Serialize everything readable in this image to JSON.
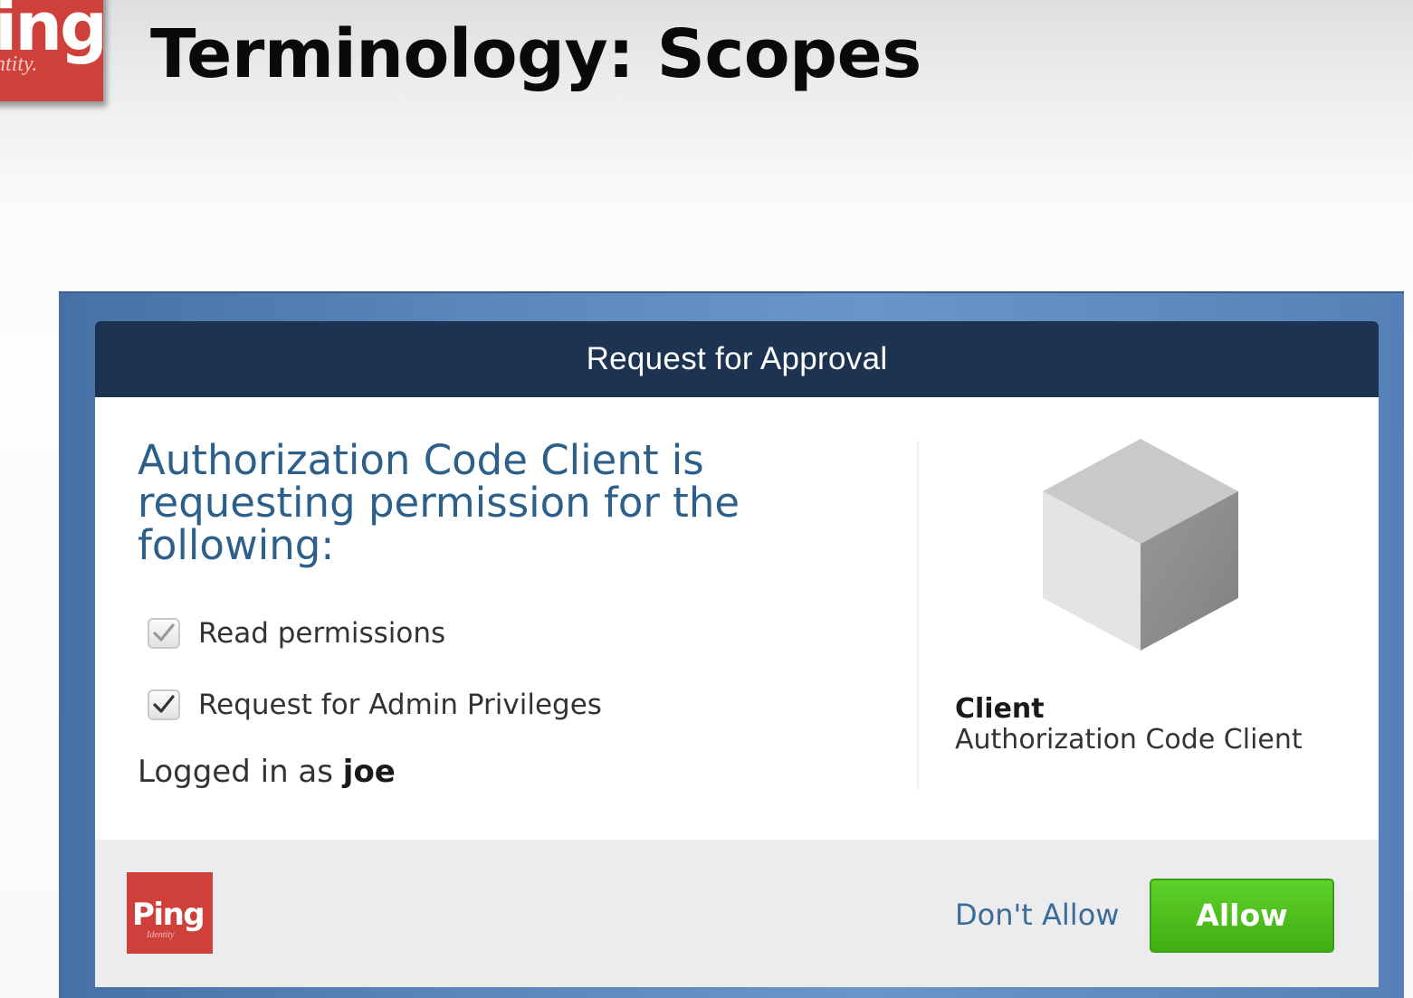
{
  "slide": {
    "logo_text": "ing",
    "logo_subtext": "ntity.",
    "title": "Terminology: Scopes"
  },
  "dialog": {
    "header": "Request for Approval",
    "request_text": "Authorization Code Client is requesting permission for the following:",
    "scopes": [
      {
        "label": "Read permissions",
        "checked": true,
        "disabled": true
      },
      {
        "label": "Request for Admin Privileges",
        "checked": true,
        "disabled": false
      }
    ],
    "logged_in_prefix": "Logged in as",
    "username": "joe",
    "client": {
      "icon": "cube-icon",
      "label": "Client",
      "name": "Authorization Code Client"
    },
    "footer": {
      "logo_text": "Ping",
      "logo_subtext": "Identity",
      "dont_allow_label": "Don't Allow",
      "allow_label": "Allow"
    }
  },
  "colors": {
    "brand_red": "#d0403a",
    "header_navy": "#1c3452",
    "frame_blue": "#5a86bd",
    "request_text_blue": "#2c5f8a",
    "allow_green": "#4cbf1a"
  }
}
